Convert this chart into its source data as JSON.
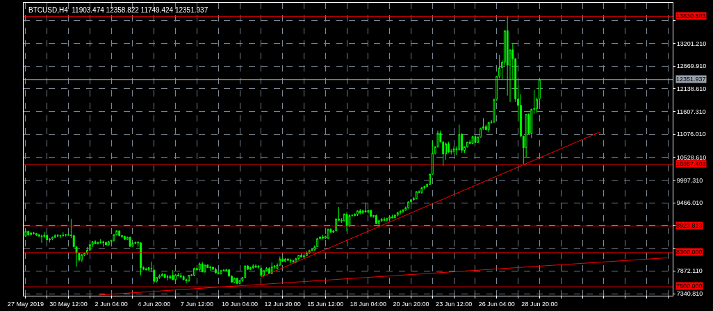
{
  "chart_data": {
    "type": "candlestick",
    "title": "BTCUSD,H4  11903.474 12358.822 11749.424 12351.937",
    "color": "#00ff00",
    "x": [
      "2019-05-27T20:00",
      "2019-05-28T00:00",
      "2019-05-28T04:00",
      "2019-05-28T08:00",
      "2019-05-28T12:00",
      "2019-05-28T16:00",
      "2019-05-28T20:00",
      "2019-05-29T00:00",
      "2019-05-29T04:00",
      "2019-05-29T08:00",
      "2019-05-29T12:00",
      "2019-05-29T16:00",
      "2019-05-29T20:00",
      "2019-05-30T00:00",
      "2019-05-30T04:00",
      "2019-05-30T08:00",
      "2019-05-30T12:00",
      "2019-05-30T16:00",
      "2019-05-30T20:00",
      "2019-05-31T00:00",
      "2019-05-31T04:00",
      "2019-05-31T08:00",
      "2019-05-31T12:00",
      "2019-05-31T16:00",
      "2019-05-31T20:00",
      "2019-06-01T00:00",
      "2019-06-01T04:00",
      "2019-06-01T08:00",
      "2019-06-01T12:00",
      "2019-06-01T16:00",
      "2019-06-01T20:00",
      "2019-06-02T00:00",
      "2019-06-02T04:00",
      "2019-06-02T08:00",
      "2019-06-02T12:00",
      "2019-06-02T16:00",
      "2019-06-02T20:00",
      "2019-06-03T00:00",
      "2019-06-03T04:00",
      "2019-06-03T08:00",
      "2019-06-03T12:00",
      "2019-06-03T16:00",
      "2019-06-03T20:00",
      "2019-06-04T00:00",
      "2019-06-04T04:00",
      "2019-06-04T08:00",
      "2019-06-04T12:00",
      "2019-06-04T16:00",
      "2019-06-04T20:00",
      "2019-06-05T00:00",
      "2019-06-05T04:00",
      "2019-06-05T08:00",
      "2019-06-05T12:00",
      "2019-06-05T16:00",
      "2019-06-05T20:00",
      "2019-06-06T00:00",
      "2019-06-06T04:00",
      "2019-06-06T08:00",
      "2019-06-06T12:00",
      "2019-06-06T16:00",
      "2019-06-06T20:00",
      "2019-06-07T00:00",
      "2019-06-07T04:00",
      "2019-06-07T08:00",
      "2019-06-07T12:00",
      "2019-06-07T16:00",
      "2019-06-07T20:00",
      "2019-06-08T00:00",
      "2019-06-08T04:00",
      "2019-06-08T08:00",
      "2019-06-08T12:00",
      "2019-06-08T16:00",
      "2019-06-08T20:00",
      "2019-06-09T00:00",
      "2019-06-09T04:00",
      "2019-06-09T08:00",
      "2019-06-09T12:00",
      "2019-06-09T16:00",
      "2019-06-09T20:00",
      "2019-06-10T00:00",
      "2019-06-10T04:00",
      "2019-06-10T08:00",
      "2019-06-10T12:00",
      "2019-06-10T16:00",
      "2019-06-10T20:00",
      "2019-06-11T00:00",
      "2019-06-11T04:00",
      "2019-06-11T08:00",
      "2019-06-11T12:00",
      "2019-06-11T16:00",
      "2019-06-11T20:00",
      "2019-06-12T00:00",
      "2019-06-12T04:00",
      "2019-06-12T08:00",
      "2019-06-12T12:00",
      "2019-06-12T16:00",
      "2019-06-12T20:00",
      "2019-06-13T00:00",
      "2019-06-13T04:00",
      "2019-06-13T08:00",
      "2019-06-13T12:00",
      "2019-06-13T16:00",
      "2019-06-13T20:00",
      "2019-06-14T00:00",
      "2019-06-14T04:00",
      "2019-06-14T08:00",
      "2019-06-14T12:00",
      "2019-06-14T16:00",
      "2019-06-14T20:00",
      "2019-06-15T00:00",
      "2019-06-15T04:00",
      "2019-06-15T08:00",
      "2019-06-15T12:00",
      "2019-06-15T16:00",
      "2019-06-15T20:00",
      "2019-06-16T00:00",
      "2019-06-16T04:00",
      "2019-06-16T08:00",
      "2019-06-16T12:00",
      "2019-06-16T16:00",
      "2019-06-16T20:00",
      "2019-06-17T00:00",
      "2019-06-17T04:00",
      "2019-06-17T08:00",
      "2019-06-17T12:00",
      "2019-06-17T16:00",
      "2019-06-17T20:00",
      "2019-06-18T00:00",
      "2019-06-18T04:00",
      "2019-06-18T08:00",
      "2019-06-18T12:00",
      "2019-06-18T16:00",
      "2019-06-18T20:00",
      "2019-06-19T00:00",
      "2019-06-19T04:00",
      "2019-06-19T08:00",
      "2019-06-19T12:00",
      "2019-06-19T16:00",
      "2019-06-19T20:00",
      "2019-06-20T00:00",
      "2019-06-20T04:00",
      "2019-06-20T08:00",
      "2019-06-20T12:00",
      "2019-06-20T16:00",
      "2019-06-20T20:00",
      "2019-06-21T00:00",
      "2019-06-21T04:00",
      "2019-06-21T08:00",
      "2019-06-21T12:00",
      "2019-06-21T16:00",
      "2019-06-21T20:00",
      "2019-06-22T00:00",
      "2019-06-22T04:00",
      "2019-06-22T08:00",
      "2019-06-22T12:00",
      "2019-06-22T16:00",
      "2019-06-22T20:00",
      "2019-06-23T00:00",
      "2019-06-23T04:00",
      "2019-06-23T08:00",
      "2019-06-23T12:00",
      "2019-06-23T16:00",
      "2019-06-23T20:00",
      "2019-06-24T00:00",
      "2019-06-24T04:00",
      "2019-06-24T08:00",
      "2019-06-24T12:00",
      "2019-06-24T16:00",
      "2019-06-24T20:00",
      "2019-06-25T00:00",
      "2019-06-25T04:00",
      "2019-06-25T08:00",
      "2019-06-25T12:00",
      "2019-06-25T16:00",
      "2019-06-25T20:00",
      "2019-06-26T00:00",
      "2019-06-26T04:00",
      "2019-06-26T08:00",
      "2019-06-26T12:00",
      "2019-06-26T16:00",
      "2019-06-26T20:00",
      "2019-06-27T00:00",
      "2019-06-27T04:00",
      "2019-06-27T08:00",
      "2019-06-27T12:00",
      "2019-06-27T16:00",
      "2019-06-27T20:00",
      "2019-06-28T00:00",
      "2019-06-28T04:00",
      "2019-06-28T08:00",
      "2019-06-28T12:00",
      "2019-06-28T16:00",
      "2019-06-28T20:00"
    ],
    "ohlc": [
      [
        8690,
        8840,
        8670,
        8800
      ],
      [
        8800,
        8810,
        8700,
        8720
      ],
      [
        8720,
        8790,
        8710,
        8760
      ],
      [
        8760,
        8790,
        8730,
        8750
      ],
      [
        8750,
        8760,
        8690,
        8720
      ],
      [
        8720,
        8740,
        8660,
        8690
      ],
      [
        8690,
        8720,
        8530,
        8680
      ],
      [
        8680,
        8780,
        8650,
        8710
      ],
      [
        8710,
        8730,
        8590,
        8600
      ],
      [
        8600,
        8640,
        8540,
        8620
      ],
      [
        8620,
        8680,
        8590,
        8660
      ],
      [
        8660,
        8730,
        8640,
        8700
      ],
      [
        8700,
        8740,
        8660,
        8690
      ],
      [
        8690,
        8720,
        8640,
        8700
      ],
      [
        8700,
        8780,
        8670,
        8710
      ],
      [
        8710,
        8740,
        8680,
        8720
      ],
      [
        8720,
        8750,
        8700,
        8710
      ],
      [
        8710,
        9090,
        8640,
        8700
      ],
      [
        8700,
        8720,
        8420,
        8440
      ],
      [
        8440,
        8450,
        7970,
        8290
      ],
      [
        8290,
        8300,
        8090,
        8130
      ],
      [
        8130,
        8270,
        8090,
        8250
      ],
      [
        8250,
        8300,
        8220,
        8290
      ],
      [
        8290,
        8430,
        8250,
        8360
      ],
      [
        8360,
        8500,
        8340,
        8490
      ],
      [
        8490,
        8570,
        8430,
        8560
      ],
      [
        8560,
        8590,
        8510,
        8510
      ],
      [
        8510,
        8560,
        8490,
        8540
      ],
      [
        8540,
        8620,
        8510,
        8550
      ],
      [
        8550,
        8580,
        8440,
        8540
      ],
      [
        8540,
        8560,
        8480,
        8480
      ],
      [
        8480,
        8580,
        8470,
        8560
      ],
      [
        8560,
        8600,
        8550,
        8590
      ],
      [
        8590,
        8740,
        8560,
        8720
      ],
      [
        8720,
        8830,
        8700,
        8810
      ],
      [
        8810,
        8820,
        8680,
        8700
      ],
      [
        8700,
        8720,
        8640,
        8680
      ],
      [
        8680,
        8700,
        8600,
        8610
      ],
      [
        8610,
        8680,
        8600,
        8660
      ],
      [
        8660,
        8680,
        8430,
        8450
      ],
      [
        8450,
        8540,
        8440,
        8520
      ],
      [
        8520,
        8560,
        8500,
        8540
      ],
      [
        8540,
        8570,
        8440,
        8530
      ],
      [
        8530,
        8540,
        7770,
        7950
      ],
      [
        7950,
        7980,
        7890,
        7920
      ],
      [
        7920,
        7950,
        7880,
        7900
      ],
      [
        7900,
        7970,
        7870,
        7950
      ],
      [
        7920,
        8090,
        7850,
        7930
      ],
      [
        7890,
        7910,
        7600,
        7630
      ],
      [
        7630,
        7730,
        7600,
        7720
      ],
      [
        7720,
        7790,
        7690,
        7760
      ],
      [
        7760,
        7830,
        7740,
        7790
      ],
      [
        7790,
        7810,
        7700,
        7720
      ],
      [
        7720,
        7780,
        7650,
        7740
      ],
      [
        7740,
        7780,
        7680,
        7710
      ],
      [
        7770,
        7890,
        7660,
        7670
      ],
      [
        7670,
        7800,
        7640,
        7780
      ],
      [
        7780,
        7830,
        7740,
        7760
      ],
      [
        7760,
        7830,
        7700,
        7740
      ],
      [
        7740,
        7770,
        7650,
        7670
      ],
      [
        7670,
        7690,
        7580,
        7640
      ],
      [
        7640,
        7780,
        7620,
        7770
      ],
      [
        7770,
        7800,
        7750,
        7780
      ],
      [
        7770,
        7950,
        7750,
        7930
      ],
      [
        7930,
        7960,
        7870,
        7900
      ],
      [
        7900,
        8070,
        7880,
        8040
      ],
      [
        8040,
        8090,
        7840,
        7850
      ],
      [
        7850,
        8020,
        7830,
        8010
      ],
      [
        8010,
        8030,
        7940,
        7950
      ],
      [
        7950,
        7990,
        7880,
        7960
      ],
      [
        7960,
        7980,
        7900,
        7910
      ],
      [
        7910,
        7950,
        7810,
        7830
      ],
      [
        7830,
        7860,
        7790,
        7810
      ],
      [
        7810,
        7900,
        7790,
        7880
      ],
      [
        7880,
        7910,
        7860,
        7890
      ],
      [
        7880,
        7920,
        7860,
        7900
      ],
      [
        7900,
        7910,
        7740,
        7750
      ],
      [
        7750,
        7770,
        7600,
        7610
      ],
      [
        7610,
        7720,
        7590,
        7700
      ],
      [
        7700,
        7720,
        7560,
        7580
      ],
      [
        7580,
        7650,
        7560,
        7650
      ],
      [
        7650,
        7730,
        7620,
        7720
      ],
      [
        7720,
        8000,
        7700,
        7990
      ],
      [
        7990,
        8010,
        7900,
        7910
      ],
      [
        7910,
        7970,
        7890,
        7950
      ],
      [
        7950,
        8030,
        7910,
        7990
      ],
      [
        7990,
        8030,
        7940,
        7960
      ],
      [
        7960,
        8000,
        7930,
        7990
      ],
      [
        7930,
        7960,
        7730,
        7770
      ],
      [
        7770,
        7890,
        7740,
        7880
      ],
      [
        7880,
        7960,
        7860,
        7930
      ],
      [
        7930,
        7960,
        7800,
        7810
      ],
      [
        7810,
        8070,
        7800,
        7970
      ],
      [
        7970,
        8010,
        7920,
        7990
      ],
      [
        7930,
        8050,
        7910,
        8010
      ],
      [
        8010,
        8210,
        7990,
        8150
      ],
      [
        8150,
        8170,
        8080,
        8100
      ],
      [
        8100,
        8170,
        8080,
        8150
      ],
      [
        8150,
        8170,
        8110,
        8120
      ],
      [
        8120,
        8160,
        8050,
        8110
      ],
      [
        8110,
        8140,
        8070,
        8080
      ],
      [
        8080,
        8180,
        8060,
        8160
      ],
      [
        8160,
        8250,
        8130,
        8240
      ],
      [
        8240,
        8290,
        8190,
        8200
      ],
      [
        8200,
        8250,
        8170,
        8230
      ],
      [
        8230,
        8330,
        8220,
        8290
      ],
      [
        8290,
        8370,
        8270,
        8350
      ],
      [
        8350,
        8400,
        8330,
        8370
      ],
      [
        8370,
        8470,
        8340,
        8440
      ],
      [
        8440,
        8640,
        8430,
        8630
      ],
      [
        8630,
        8680,
        8620,
        8670
      ],
      [
        8670,
        8720,
        8620,
        8640
      ],
      [
        8640,
        8700,
        8620,
        8680
      ],
      [
        8640,
        8860,
        8620,
        8850
      ],
      [
        8850,
        8870,
        8760,
        8780
      ],
      [
        8780,
        8830,
        8760,
        8810
      ],
      [
        8810,
        9100,
        8800,
        9090
      ],
      [
        9090,
        9370,
        9040,
        9060
      ],
      [
        9060,
        9110,
        9000,
        9050
      ],
      [
        9050,
        9220,
        9030,
        9200
      ],
      [
        9200,
        9250,
        8800,
        8930
      ],
      [
        8930,
        9200,
        8900,
        9170
      ],
      [
        9170,
        9210,
        9140,
        9170
      ],
      [
        9170,
        9220,
        9150,
        9200
      ],
      [
        9200,
        9290,
        9160,
        9280
      ],
      [
        9280,
        9320,
        9200,
        9230
      ],
      [
        9230,
        9300,
        9200,
        9280
      ],
      [
        9280,
        9460,
        9240,
        9250
      ],
      [
        9250,
        9310,
        9220,
        9290
      ],
      [
        9290,
        9300,
        9140,
        9150
      ],
      [
        9150,
        9180,
        9120,
        9170
      ],
      [
        9170,
        9190,
        8970,
        8980
      ],
      [
        8980,
        9070,
        8950,
        9050
      ],
      [
        9050,
        9110,
        9020,
        9080
      ],
      [
        9080,
        9130,
        9040,
        9060
      ],
      [
        9060,
        9120,
        9030,
        9100
      ],
      [
        9100,
        9160,
        9070,
        9140
      ],
      [
        9140,
        9190,
        9100,
        9120
      ],
      [
        9120,
        9200,
        9100,
        9180
      ],
      [
        9180,
        9260,
        9150,
        9240
      ],
      [
        9240,
        9300,
        9200,
        9270
      ],
      [
        9270,
        9320,
        9230,
        9300
      ],
      [
        9300,
        9380,
        9280,
        9350
      ],
      [
        9350,
        9500,
        9330,
        9490
      ],
      [
        9490,
        9560,
        9440,
        9540
      ],
      [
        9540,
        9600,
        9520,
        9570
      ],
      [
        9570,
        9740,
        9550,
        9730
      ],
      [
        9730,
        9760,
        9690,
        9710
      ],
      [
        9710,
        9840,
        9680,
        9820
      ],
      [
        9820,
        9870,
        9780,
        9850
      ],
      [
        9850,
        9920,
        9830,
        9900
      ],
      [
        9900,
        10140,
        9880,
        10140
      ],
      [
        10140,
        10920,
        10120,
        10630
      ],
      [
        10630,
        10790,
        10600,
        10780
      ],
      [
        10780,
        11160,
        10760,
        11100
      ],
      [
        11100,
        11160,
        10880,
        10890
      ],
      [
        10890,
        10920,
        10330,
        10610
      ],
      [
        10610,
        10880,
        10480,
        10850
      ],
      [
        10850,
        10900,
        10640,
        10660
      ],
      [
        10660,
        10720,
        10600,
        10670
      ],
      [
        10670,
        10790,
        10630,
        10730
      ],
      [
        10730,
        10790,
        10590,
        10710
      ],
      [
        10710,
        11300,
        10700,
        11070
      ],
      [
        11070,
        11100,
        10640,
        10700
      ],
      [
        10700,
        10790,
        10640,
        10780
      ],
      [
        10780,
        10890,
        10760,
        10890
      ],
      [
        10890,
        10940,
        10840,
        10860
      ],
      [
        10860,
        11020,
        10840,
        11020
      ],
      [
        11020,
        11050,
        10870,
        10880
      ],
      [
        10880,
        11020,
        10870,
        11010
      ],
      [
        11010,
        11230,
        10990,
        11210
      ],
      [
        11210,
        11450,
        11180,
        11250
      ],
      [
        11250,
        11300,
        11160,
        11180
      ],
      [
        11180,
        11360,
        11120,
        11350
      ],
      [
        11350,
        11410,
        11320,
        11360
      ],
      [
        11360,
        11900,
        11340,
        11890
      ],
      [
        11890,
        12440,
        11850,
        12430
      ],
      [
        12430,
        12930,
        12380,
        12630
      ],
      [
        12630,
        12810,
        12340,
        12760
      ],
      [
        12760,
        13500,
        12680,
        13500
      ],
      [
        13500,
        13830,
        11980,
        12690
      ],
      [
        12690,
        13050,
        11830,
        13050
      ],
      [
        13050,
        13190,
        12360,
        12840
      ],
      [
        12840,
        12840,
        11830,
        11900
      ],
      [
        11900,
        12240,
        11380,
        11750
      ],
      [
        11750,
        12010,
        11010,
        11030
      ],
      [
        11030,
        11030,
        10380,
        10760
      ],
      [
        10760,
        11540,
        10540,
        11540
      ],
      [
        11540,
        11570,
        11080,
        11090
      ],
      [
        11090,
        11670,
        10980,
        11660
      ],
      [
        11660,
        12110,
        11560,
        11670
      ],
      [
        11670,
        11930,
        11580,
        11890
      ],
      [
        11903.474,
        12358.822,
        11749.424,
        12351.937
      ]
    ],
    "series": [
      {
        "type": "line",
        "color": "#ff0000",
        "x": [
          "2019-06-01T10:00",
          "2019-07-06T19:00"
        ],
        "values": [
          7310,
          8180
        ]
      },
      {
        "type": "line",
        "color": "#ff0000",
        "x": [
          "2019-06-11T12:00",
          "2019-07-02T15:00"
        ],
        "values": [
          7730,
          11130
        ]
      }
    ],
    "ref_lines": [
      {
        "axis": "y",
        "value": 13830.803,
        "label": "13830.803",
        "color": "#ff0000"
      },
      {
        "axis": "y",
        "value": 12351.937,
        "label": "12351.937",
        "color": "#9aa3ad"
      },
      {
        "axis": "y",
        "value": 10357.403,
        "label": "10357.403",
        "color": "#ff0000"
      },
      {
        "axis": "y",
        "value": 8923.813,
        "label": "8923.813",
        "color": "#ff0000"
      },
      {
        "axis": "y",
        "value": 8300.0,
        "label": "8300.000",
        "color": "#ff0000"
      },
      {
        "axis": "y",
        "value": 7500.0,
        "label": "7500.000",
        "color": "#ff0000"
      }
    ],
    "xlim": [
      "2019-05-27T17:00",
      "2019-07-07T03:00"
    ],
    "ylim": [
      7292,
      14152
    ],
    "xticks": [
      {
        "value": "2019-05-27T20:00",
        "label": "27 May 2019"
      },
      {
        "value": "2019-05-29T04:00",
        "label": null
      },
      {
        "value": "2019-05-30T12:00",
        "label": "30 May 12:00"
      },
      {
        "value": "2019-05-31T20:00",
        "label": null
      },
      {
        "value": "2019-06-02T04:00",
        "label": "2 Jun 04:00"
      },
      {
        "value": "2019-06-03T12:00",
        "label": null
      },
      {
        "value": "2019-06-04T20:00",
        "label": "4 Jun 20:00"
      },
      {
        "value": "2019-06-06T04:00",
        "label": null
      },
      {
        "value": "2019-06-07T12:00",
        "label": "7 Jun 12:00"
      },
      {
        "value": "2019-06-08T20:00",
        "label": null
      },
      {
        "value": "2019-06-10T04:00",
        "label": "10 Jun 04:00"
      },
      {
        "value": "2019-06-11T12:00",
        "label": null
      },
      {
        "value": "2019-06-12T20:00",
        "label": "12 Jun 20:00"
      },
      {
        "value": "2019-06-14T04:00",
        "label": null
      },
      {
        "value": "2019-06-15T12:00",
        "label": "15 Jun 12:00"
      },
      {
        "value": "2019-06-16T20:00",
        "label": null
      },
      {
        "value": "2019-06-18T04:00",
        "label": "18 Jun 04:00"
      },
      {
        "value": "2019-06-19T12:00",
        "label": null
      },
      {
        "value": "2019-06-20T20:00",
        "label": "20 Jun 20:00"
      },
      {
        "value": "2019-06-22T04:00",
        "label": null
      },
      {
        "value": "2019-06-23T12:00",
        "label": "23 Jun 12:00"
      },
      {
        "value": "2019-06-24T20:00",
        "label": null
      },
      {
        "value": "2019-06-26T04:00",
        "label": "26 Jun 04:00"
      },
      {
        "value": "2019-06-27T12:00",
        "label": null
      },
      {
        "value": "2019-06-28T20:00",
        "label": "28 Jun 20:00"
      },
      {
        "value": "2019-06-30T04:00",
        "label": null
      },
      {
        "value": "2019-07-01T12:00",
        "label": null
      },
      {
        "value": "2019-07-02T20:00",
        "label": null
      },
      {
        "value": "2019-07-04T04:00",
        "label": null
      },
      {
        "value": "2019-07-05T12:00",
        "label": null
      },
      {
        "value": "2019-07-06T20:00",
        "label": null
      }
    ],
    "yticks": [
      {
        "value": 7340.81,
        "label": "7340.810"
      },
      {
        "value": 7872.11,
        "label": "7872.110"
      },
      {
        "value": 8403.41,
        "label": null
      },
      {
        "value": 8934.71,
        "label": null
      },
      {
        "value": 9466.01,
        "label": "9466.010"
      },
      {
        "value": 9997.31,
        "label": "9997.310"
      },
      {
        "value": 10528.61,
        "label": "10528.610"
      },
      {
        "value": 11076.01,
        "label": "11076.010"
      },
      {
        "value": 11607.31,
        "label": "11607.310"
      },
      {
        "value": 12138.61,
        "label": "12138.610"
      },
      {
        "value": 12669.91,
        "label": "12669.910"
      },
      {
        "value": 13201.21,
        "label": "13201.210"
      },
      {
        "value": 13732.51,
        "label": null
      }
    ],
    "grid": true
  }
}
